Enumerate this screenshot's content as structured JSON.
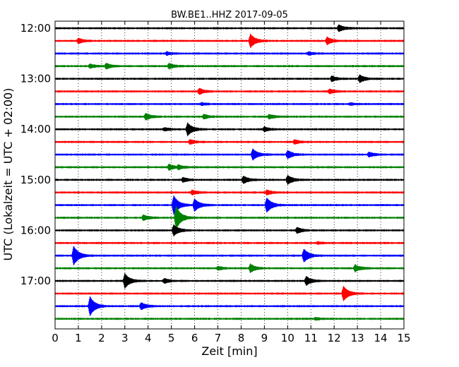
{
  "chart_data": {
    "type": "line",
    "title": "BW.BE1..HHZ 2017-09-05",
    "xlabel": "Zeit  [min]",
    "ylabel": "UTC (Lokalzeit = UTC + 02:00)",
    "xlim": [
      0,
      15
    ],
    "x_ticks": [
      "0",
      "1",
      "2",
      "3",
      "4",
      "5",
      "6",
      "7",
      "8",
      "9",
      "10",
      "11",
      "12",
      "13",
      "14",
      "15"
    ],
    "y_ticks": [
      {
        "label": "12:00",
        "row": 0
      },
      {
        "label": "13:00",
        "row": 4
      },
      {
        "label": "14:00",
        "row": 8
      },
      {
        "label": "15:00",
        "row": 12
      },
      {
        "label": "16:00",
        "row": 16
      },
      {
        "label": "17:00",
        "row": 20
      }
    ],
    "grid": "vertical-dotted",
    "row_colors": [
      "#000000",
      "#ff0000",
      "#0000ff",
      "#008000"
    ],
    "rows": [
      {
        "start": "12:00",
        "events": [
          {
            "t": 12.2,
            "amp": 0.45
          }
        ]
      },
      {
        "start": "12:15",
        "events": [
          {
            "t": 8.4,
            "amp": 0.9
          },
          {
            "t": 11.7,
            "amp": 0.5
          },
          {
            "t": 1.0,
            "amp": 0.35
          }
        ]
      },
      {
        "start": "12:30",
        "events": [
          {
            "t": 4.8,
            "amp": 0.2
          },
          {
            "t": 10.9,
            "amp": 0.2
          }
        ]
      },
      {
        "start": "12:45",
        "events": [
          {
            "t": 1.5,
            "amp": 0.25
          },
          {
            "t": 2.2,
            "amp": 0.35
          },
          {
            "t": 4.9,
            "amp": 0.35
          }
        ]
      },
      {
        "start": "13:00",
        "events": [
          {
            "t": 11.9,
            "amp": 0.35
          },
          {
            "t": 13.1,
            "amp": 0.5
          }
        ]
      },
      {
        "start": "13:15",
        "events": [
          {
            "t": 6.2,
            "amp": 0.4
          },
          {
            "t": 11.8,
            "amp": 0.3
          }
        ]
      },
      {
        "start": "13:30",
        "events": [
          {
            "t": 6.3,
            "amp": 0.15
          },
          {
            "t": 12.7,
            "amp": 0.15
          }
        ]
      },
      {
        "start": "13:45",
        "events": [
          {
            "t": 3.9,
            "amp": 0.45
          },
          {
            "t": 6.4,
            "amp": 0.3
          },
          {
            "t": 9.2,
            "amp": 0.3
          }
        ]
      },
      {
        "start": "14:00",
        "events": [
          {
            "t": 5.7,
            "amp": 0.85
          },
          {
            "t": 9.0,
            "amp": 0.3
          },
          {
            "t": 4.7,
            "amp": 0.2
          }
        ]
      },
      {
        "start": "14:15",
        "events": [
          {
            "t": 5.8,
            "amp": 0.3
          },
          {
            "t": 10.3,
            "amp": 0.3
          }
        ]
      },
      {
        "start": "14:30",
        "events": [
          {
            "t": 8.5,
            "amp": 0.75
          },
          {
            "t": 10.0,
            "amp": 0.55
          },
          {
            "t": 13.5,
            "amp": 0.3
          }
        ]
      },
      {
        "start": "14:45",
        "events": [
          {
            "t": 4.9,
            "amp": 0.4
          },
          {
            "t": 5.3,
            "amp": 0.25
          }
        ]
      },
      {
        "start": "15:00",
        "events": [
          {
            "t": 8.1,
            "amp": 0.5
          },
          {
            "t": 10.0,
            "amp": 0.6
          },
          {
            "t": 5.5,
            "amp": 0.3
          }
        ]
      },
      {
        "start": "15:15",
        "events": [
          {
            "t": 5.9,
            "amp": 0.3
          },
          {
            "t": 9.1,
            "amp": 0.3
          }
        ]
      },
      {
        "start": "15:30",
        "events": [
          {
            "t": 6.0,
            "amp": 0.85
          },
          {
            "t": 9.1,
            "amp": 1.0
          },
          {
            "t": 5.1,
            "amp": 1.3
          }
        ]
      },
      {
        "start": "15:45",
        "events": [
          {
            "t": 5.2,
            "amp": 1.6
          },
          {
            "t": 3.8,
            "amp": 0.35
          }
        ]
      },
      {
        "start": "16:00",
        "events": [
          {
            "t": 5.1,
            "amp": 0.75
          },
          {
            "t": 10.4,
            "amp": 0.4
          }
        ]
      },
      {
        "start": "16:15",
        "events": [
          {
            "t": 11.3,
            "amp": 0.15
          }
        ]
      },
      {
        "start": "16:30",
        "events": [
          {
            "t": 0.8,
            "amp": 1.3
          },
          {
            "t": 10.7,
            "amp": 0.9
          }
        ]
      },
      {
        "start": "16:45",
        "events": [
          {
            "t": 8.4,
            "amp": 0.55
          },
          {
            "t": 12.9,
            "amp": 0.45
          },
          {
            "t": 7.0,
            "amp": 0.25
          }
        ]
      },
      {
        "start": "17:00",
        "events": [
          {
            "t": 3.0,
            "amp": 1.0
          },
          {
            "t": 10.8,
            "amp": 0.6
          },
          {
            "t": 4.7,
            "amp": 0.3
          }
        ]
      },
      {
        "start": "17:15",
        "events": [
          {
            "t": 12.4,
            "amp": 1.0
          }
        ]
      },
      {
        "start": "17:30",
        "events": [
          {
            "t": 1.5,
            "amp": 1.3
          },
          {
            "t": 3.7,
            "amp": 0.45
          }
        ]
      },
      {
        "start": "17:45",
        "events": [
          {
            "t": 11.2,
            "amp": 0.15
          }
        ]
      }
    ]
  }
}
